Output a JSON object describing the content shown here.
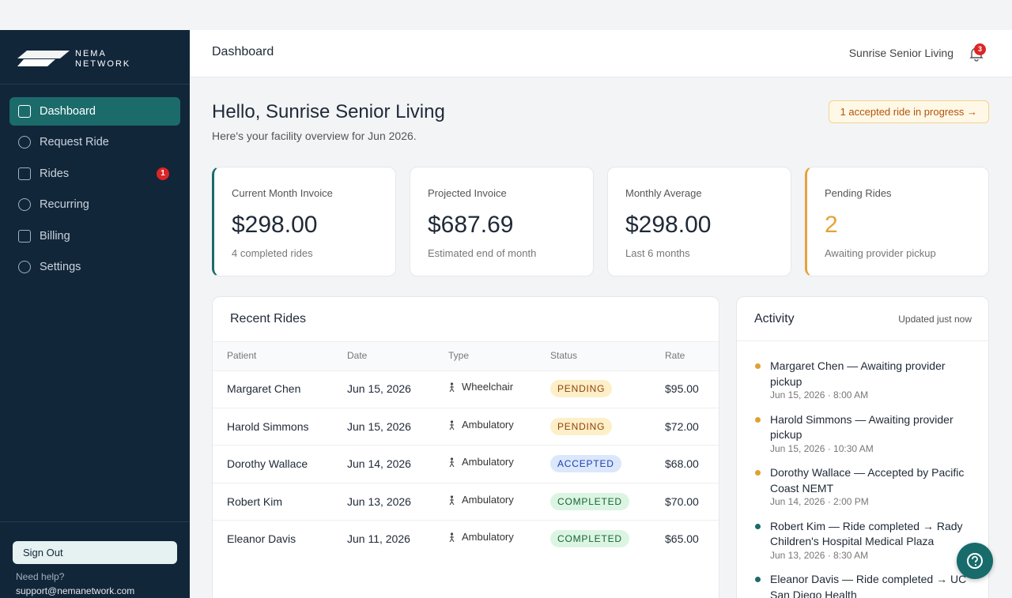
{
  "sidebar": {
    "brand": [
      "NEMA",
      "NETWORK"
    ],
    "nav": [
      {
        "label": "Dashboard",
        "active": true
      },
      {
        "label": "Request Ride"
      },
      {
        "label": "Rides",
        "badge": 1
      },
      {
        "label": "Recurring"
      },
      {
        "label": "Billing"
      },
      {
        "label": "Settings"
      }
    ],
    "sign_out": "Sign Out",
    "help": "Need help?",
    "email": "support@nemanetwork.com"
  },
  "header": {
    "title": "Dashboard",
    "facility": "Sunrise Senior Living",
    "notifications": 3
  },
  "greeting": {
    "title": "Hello, Sunrise Senior Living",
    "subtitle": "Here's your facility overview for Jun 2026.",
    "banner": "1 accepted ride in progress →"
  },
  "cards": [
    {
      "label": "Current Month Invoice",
      "value": "$298.00",
      "note": "4 completed rides",
      "accent": "#1b6b6b"
    },
    {
      "label": "Projected Invoice",
      "value": "$687.69",
      "note": "Estimated end of month"
    },
    {
      "label": "Monthly Average",
      "value": "$298.00",
      "note": "Last 6 months"
    },
    {
      "label": "Pending Rides",
      "value": "2",
      "note": "Awaiting provider pickup",
      "accent": "#e5a23a",
      "value_color": "#e5a23a"
    }
  ],
  "recent_rides": {
    "title": "Recent Rides",
    "columns": [
      "Patient",
      "Date",
      "Type",
      "Status",
      "Rate"
    ],
    "rows": [
      [
        "Margaret Chen",
        "Jun 15, 2026",
        "Wheelchair",
        "PENDING",
        "$95.00"
      ],
      [
        "Harold Simmons",
        "Jun 15, 2026",
        "Ambulatory",
        "PENDING",
        "$72.00"
      ],
      [
        "Dorothy Wallace",
        "Jun 14, 2026",
        "Ambulatory",
        "ACCEPTED",
        "$68.00"
      ],
      [
        "Robert Kim",
        "Jun 13, 2026",
        "Ambulatory",
        "COMPLETED",
        "$70.00"
      ],
      [
        "Eleanor Davis",
        "Jun 11, 2026",
        "Ambulatory",
        "COMPLETED",
        "$65.00"
      ]
    ],
    "status_colors": {
      "PENDING": [
        "#fdefc7",
        "#92400e"
      ],
      "ACCEPTED": [
        "#dbe7fb",
        "#1e40af"
      ],
      "COMPLETED": [
        "#dcf5e3",
        "#166534"
      ]
    }
  },
  "activity": {
    "title": "Activity",
    "updated": "Updated just now",
    "items": [
      {
        "text": "Margaret Chen — Awaiting provider pickup",
        "time": "Jun 15, 2026 · 8:00 AM",
        "color": "#e0a030"
      },
      {
        "text": "Harold Simmons — Awaiting provider pickup",
        "time": "Jun 15, 2026 · 10:30 AM",
        "color": "#e0a030"
      },
      {
        "text": "Dorothy Wallace — Accepted by Pacific Coast NEMT",
        "time": "Jun 14, 2026 · 2:00 PM",
        "color": "#e0a030"
      },
      {
        "text": "Robert Kim — Ride completed → Rady Children's Hospital Medical Plaza",
        "time": "Jun 13, 2026 · 8:30 AM",
        "color": "#1b6b6b"
      },
      {
        "text": "Eleanor Davis — Ride completed → UC San Diego Health",
        "time": "",
        "color": "#1b6b6b"
      }
    ]
  }
}
